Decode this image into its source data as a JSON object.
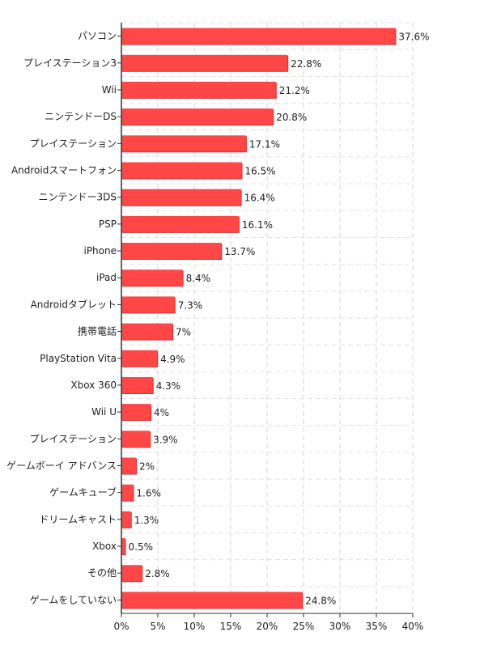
{
  "chart_data": {
    "type": "bar",
    "orientation": "horizontal",
    "categories": [
      "パソコン",
      "プレイステーション3",
      "Wii",
      "ニンテンドーDS",
      "プレイステーション",
      "Androidスマートフォン",
      "ニンテンドー3DS",
      "PSP",
      "iPhone",
      "iPad",
      "Androidタブレット",
      "携帯電話",
      "PlayStation Vita",
      "Xbox 360",
      "Wii U",
      "プレイステーション",
      "ゲームボーイ アドバンス",
      "ゲームキューブ",
      "ドリームキャスト",
      "Xbox",
      "その他",
      "ゲームをしていない"
    ],
    "values": [
      37.6,
      22.8,
      21.2,
      20.8,
      17.1,
      16.5,
      16.4,
      16.1,
      13.7,
      8.4,
      7.3,
      7,
      4.9,
      4.3,
      4,
      3.9,
      2,
      1.6,
      1.3,
      0.5,
      2.8,
      24.8
    ],
    "value_labels": [
      "37.6%",
      "22.8%",
      "21.2%",
      "20.8%",
      "17.1%",
      "16.5%",
      "16.4%",
      "16.1%",
      "13.7%",
      "8.4%",
      "7.3%",
      "7%",
      "4.9%",
      "4.3%",
      "4%",
      "3.9%",
      "2%",
      "1.6%",
      "1.3%",
      "0.5%",
      "2.8%",
      "24.8%"
    ],
    "x_ticks": [
      0,
      5,
      10,
      15,
      20,
      25,
      30,
      35,
      40
    ],
    "x_tick_labels": [
      "0%",
      "5%",
      "10%",
      "15%",
      "20%",
      "25%",
      "30%",
      "35%",
      "40%"
    ],
    "xlim": [
      0,
      40
    ],
    "grid": true,
    "bar_color": "#ff4747",
    "bar_shadow_color": "#c23535",
    "title": "",
    "xlabel": "",
    "ylabel": ""
  }
}
